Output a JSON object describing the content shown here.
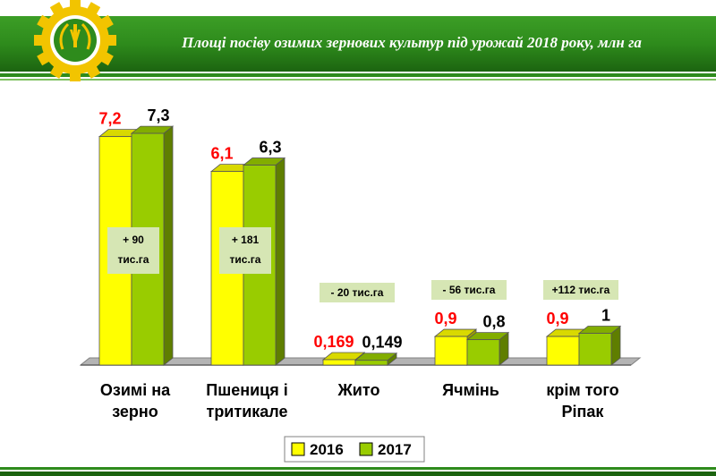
{
  "header": {
    "title": "Площі посіву озимих зернових культур під урожай  2018 року, млн  га"
  },
  "colors": {
    "header_green": "#2e8b1c",
    "header_dark": "#1c6410",
    "series_2016": "#ffff00",
    "series_2017": "#99cc00",
    "value_2016": "#ff0000",
    "value_2017": "#000000",
    "annotation_bg": "#d6e6b4"
  },
  "chart_data": {
    "type": "bar",
    "categories": [
      [
        "Озимі на",
        "зерно"
      ],
      [
        "Пшениця і",
        "тритикале"
      ],
      [
        "Жито"
      ],
      [
        "Ячмінь"
      ],
      [
        "крім того",
        "Ріпак"
      ]
    ],
    "series": [
      {
        "name": "2016",
        "values": [
          7.2,
          6.1,
          0.169,
          0.9,
          0.9
        ],
        "labels": [
          "7,2",
          "6,1",
          "0,169",
          "0,9",
          "0,9"
        ]
      },
      {
        "name": "2017",
        "values": [
          7.3,
          6.3,
          0.149,
          0.8,
          1.0
        ],
        "labels": [
          "7,3",
          "6,3",
          "0,149",
          "0,8",
          "1"
        ]
      }
    ],
    "annotations": [
      [
        "+ 90",
        "тис.га"
      ],
      [
        "+ 181",
        "тис.га"
      ],
      [
        "- 20 тис.га"
      ],
      [
        "- 56 тис.га"
      ],
      [
        "+112 тис.га"
      ]
    ],
    "ylim": [
      0,
      7.5
    ],
    "grid": false,
    "legend": "bottom-center"
  }
}
